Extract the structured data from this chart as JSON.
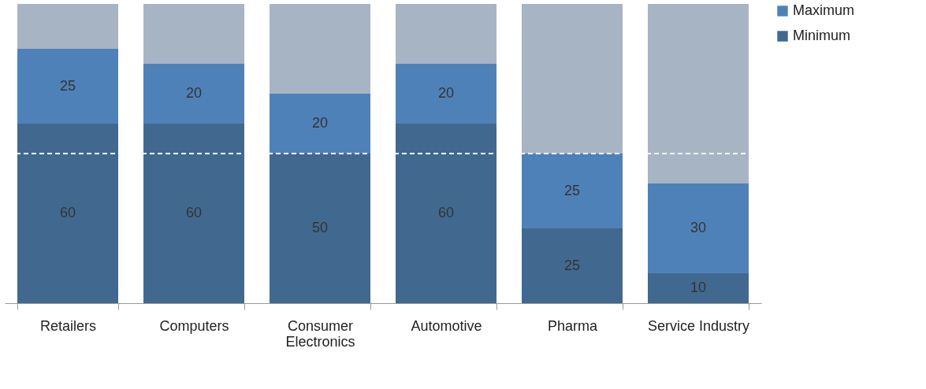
{
  "chart_data": {
    "type": "bar",
    "stacked": true,
    "categories": [
      "Retailers",
      "Computers",
      "Consumer Electronics",
      "Automotive",
      "Pharma",
      "Service Industry"
    ],
    "series": [
      {
        "name": "Minimum",
        "color": "#41698f",
        "values": [
          60,
          60,
          50,
          60,
          25,
          10
        ],
        "value_labels": [
          "60",
          "60",
          "50",
          "60",
          "25",
          "10"
        ]
      },
      {
        "name": "Maximum",
        "color": "#4f81b9",
        "values": [
          25,
          20,
          20,
          20,
          25,
          30
        ],
        "value_labels": [
          "25",
          "20",
          "20",
          "20",
          "25",
          "30"
        ]
      },
      {
        "color": "#a7b4c4",
        "values": [
          15,
          20,
          30,
          20,
          50,
          60
        ]
      }
    ],
    "ylim": [
      0,
      100
    ],
    "tick_labels": "x",
    "grid": false,
    "legend": "right",
    "ref_lines": [
      {
        "axis": "y",
        "value": 50,
        "color": "#ffffff",
        "line_style": "dashed"
      }
    ]
  }
}
